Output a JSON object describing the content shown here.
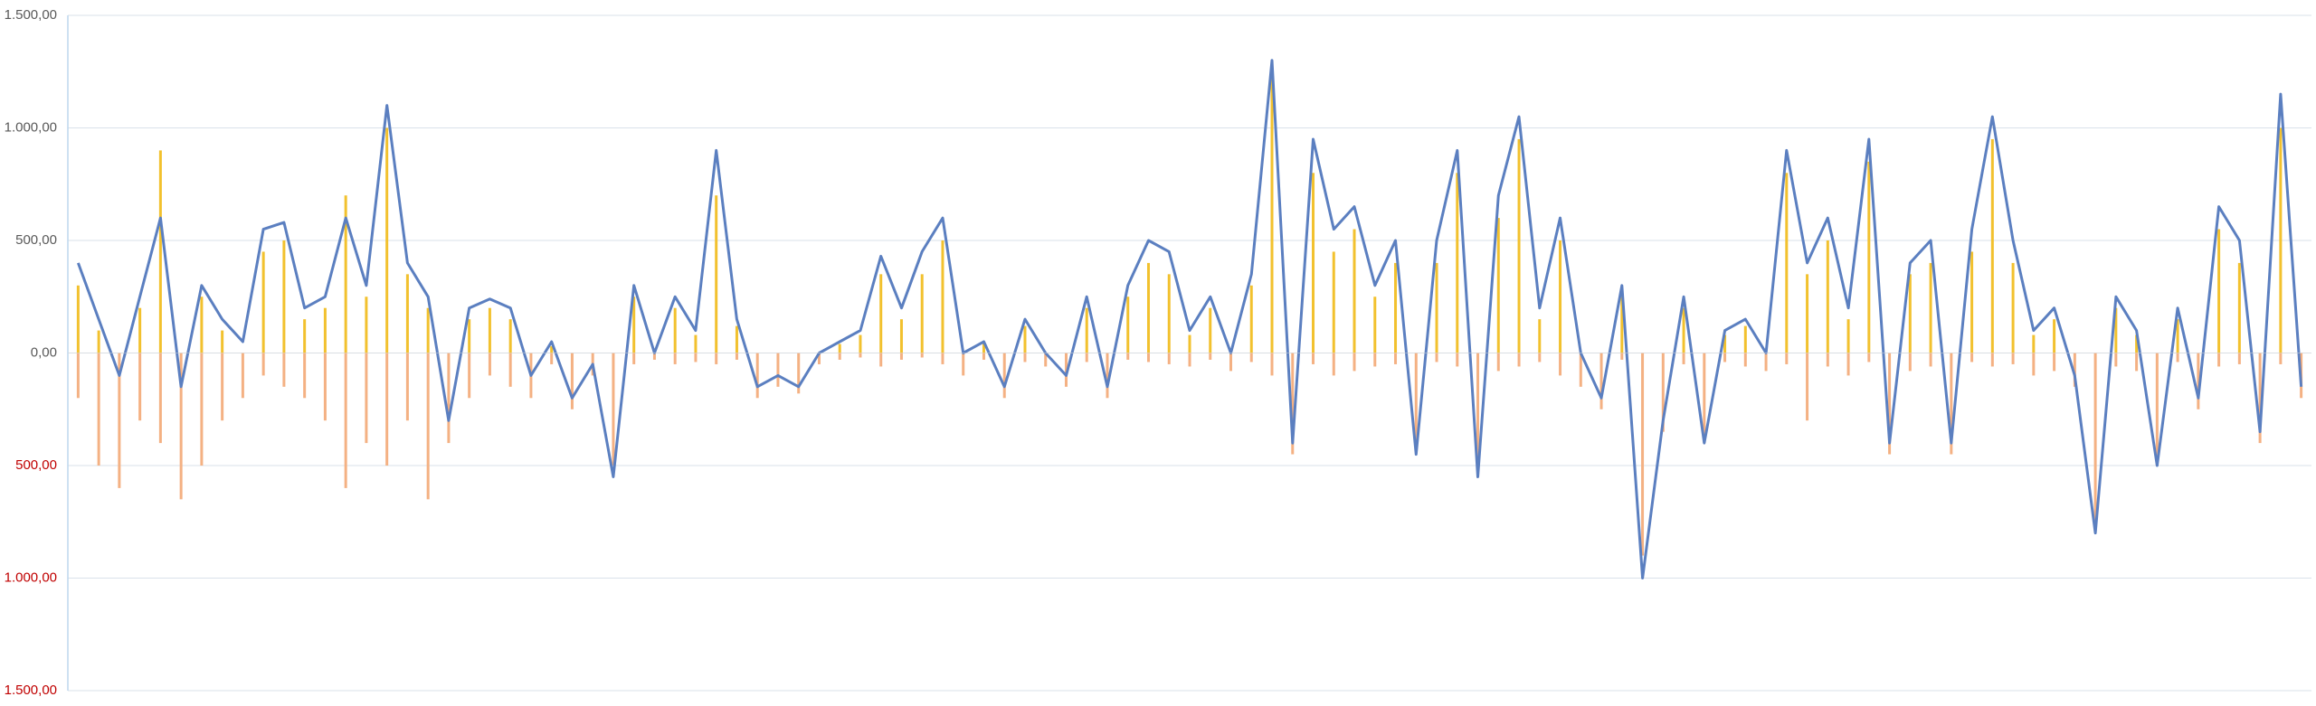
{
  "chart_data": {
    "type": "bar-line",
    "categories": [
      null,
      null,
      null,
      null,
      null,
      null,
      null,
      null,
      null,
      null,
      null,
      null,
      null,
      null,
      null,
      null,
      null,
      null,
      null,
      null,
      null,
      null,
      null,
      null,
      null,
      null,
      null,
      null,
      null,
      null,
      null,
      null,
      null,
      null,
      null,
      null,
      null,
      null,
      null,
      null,
      null,
      null,
      null,
      null,
      null,
      null,
      null,
      null,
      null,
      null,
      null,
      null,
      null,
      null,
      null,
      null,
      null,
      null,
      null,
      null,
      null,
      null,
      null,
      null,
      null,
      null,
      null,
      null,
      null,
      null,
      null,
      null,
      null,
      null,
      null,
      null,
      null,
      null,
      null,
      null,
      null,
      null,
      null,
      null,
      null,
      null,
      null,
      null,
      null,
      null,
      null,
      null,
      null,
      null,
      null,
      null,
      null,
      null,
      null,
      null,
      null,
      null,
      null,
      null,
      null,
      null,
      null,
      null,
      null
    ],
    "bar_series": [
      {
        "color": "#f2c12e",
        "values": [
          300,
          100,
          0,
          200,
          900,
          0,
          250,
          100,
          0,
          450,
          500,
          150,
          200,
          700,
          250,
          1000,
          350,
          200,
          0,
          150,
          200,
          150,
          0,
          30,
          0,
          0,
          0,
          250,
          0,
          200,
          80,
          700,
          120,
          0,
          0,
          0,
          0,
          40,
          80,
          350,
          150,
          350,
          500,
          0,
          40,
          0,
          120,
          0,
          0,
          200,
          0,
          250,
          400,
          350,
          80,
          200,
          0,
          300,
          1250,
          0,
          800,
          450,
          550,
          250,
          400,
          0,
          400,
          800,
          0,
          600,
          950,
          150,
          500,
          0,
          0,
          250,
          0,
          0,
          200,
          0,
          80,
          120,
          0,
          800,
          350,
          500,
          150,
          850,
          0,
          350,
          400,
          0,
          450,
          950,
          400,
          80,
          150,
          0,
          0,
          200,
          80,
          0,
          150,
          0,
          550,
          400,
          0,
          1000,
          0
        ]
      },
      {
        "color": "#f4b183",
        "values": [
          -200,
          -500,
          -600,
          -300,
          -400,
          -650,
          -500,
          -300,
          -200,
          -100,
          -150,
          -200,
          -300,
          -600,
          -400,
          -500,
          -300,
          -650,
          -400,
          -200,
          -100,
          -150,
          -200,
          -50,
          -250,
          -100,
          -500,
          -50,
          -30,
          -50,
          -40,
          -50,
          -30,
          -200,
          -150,
          -180,
          -50,
          -30,
          -20,
          -60,
          -30,
          -20,
          -50,
          -100,
          -30,
          -200,
          -40,
          -60,
          -150,
          -40,
          -200,
          -30,
          -40,
          -50,
          -60,
          -30,
          -80,
          -40,
          -100,
          -450,
          -50,
          -100,
          -80,
          -60,
          -50,
          -400,
          -40,
          -60,
          -550,
          -80,
          -60,
          -40,
          -100,
          -150,
          -250,
          -30,
          -900,
          -350,
          -50,
          -400,
          -40,
          -60,
          -80,
          -50,
          -300,
          -60,
          -100,
          -40,
          -450,
          -80,
          -60,
          -450,
          -40,
          -60,
          -50,
          -100,
          -80,
          -150,
          -750,
          -60,
          -80,
          -500,
          -40,
          -250,
          -60,
          -50,
          -400,
          -50,
          -200
        ]
      }
    ],
    "line_series": {
      "color": "#5b7fc0",
      "values": [
        400,
        150,
        -100,
        250,
        600,
        -150,
        300,
        150,
        50,
        550,
        580,
        200,
        250,
        600,
        300,
        1100,
        400,
        250,
        -300,
        200,
        240,
        200,
        -100,
        50,
        -200,
        -50,
        -550,
        300,
        0,
        250,
        100,
        900,
        150,
        -150,
        -100,
        -150,
        0,
        50,
        100,
        430,
        200,
        450,
        600,
        0,
        50,
        -150,
        150,
        0,
        -100,
        250,
        -150,
        300,
        500,
        450,
        100,
        250,
        0,
        350,
        1300,
        -400,
        950,
        550,
        650,
        300,
        500,
        -450,
        500,
        900,
        -550,
        700,
        1050,
        200,
        600,
        0,
        -200,
        300,
        -1000,
        -300,
        250,
        -400,
        100,
        150,
        0,
        900,
        400,
        600,
        200,
        950,
        -400,
        400,
        500,
        -400,
        550,
        1050,
        500,
        100,
        200,
        -100,
        -800,
        250,
        100,
        -500,
        200,
        -200,
        650,
        500,
        -350,
        1150,
        -150
      ]
    },
    "ylim": [
      -1500,
      1500
    ],
    "yticks": [
      {
        "value": 1500,
        "label": "1.500,00"
      },
      {
        "value": 1000,
        "label": "1.000,00"
      },
      {
        "value": 500,
        "label": "500,00"
      },
      {
        "value": 0,
        "label": "0,00"
      },
      {
        "value": -500,
        "label": "500,00"
      },
      {
        "value": -1000,
        "label": "1.000,00"
      },
      {
        "value": -1500,
        "label": "1.500,00"
      }
    ],
    "negative_tick_color": "#c00000",
    "grid": true
  }
}
